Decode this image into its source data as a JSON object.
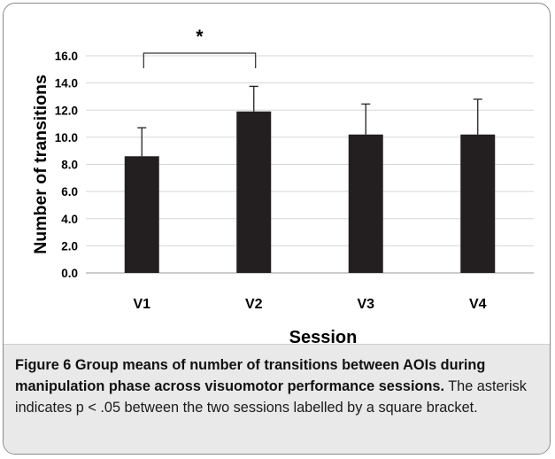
{
  "chart_data": {
    "type": "bar",
    "categories": [
      "V1",
      "V2",
      "V3",
      "V4"
    ],
    "values": [
      8.6,
      11.9,
      10.2,
      10.2
    ],
    "error": [
      2.1,
      1.85,
      2.25,
      2.6
    ],
    "ylabel": "Number of transitions",
    "xlabel": "Session",
    "ylim": [
      0,
      16
    ],
    "yticks": [
      "0.0",
      "2.0",
      "4.0",
      "6.0",
      "8.0",
      "10.0",
      "12.0",
      "14.0",
      "16.0"
    ],
    "grid": true,
    "bar_color": "#231f20",
    "annotation": {
      "text": "*",
      "from": "V1",
      "to": "V2"
    }
  },
  "caption": {
    "label": "Figure 6",
    "title": "Group means of number of transitions between AOIs during manipulation phase across visuomotor performance sessions.",
    "text": "The asterisk indicates p < .05 between the two sessions labelled by a square bracket."
  }
}
